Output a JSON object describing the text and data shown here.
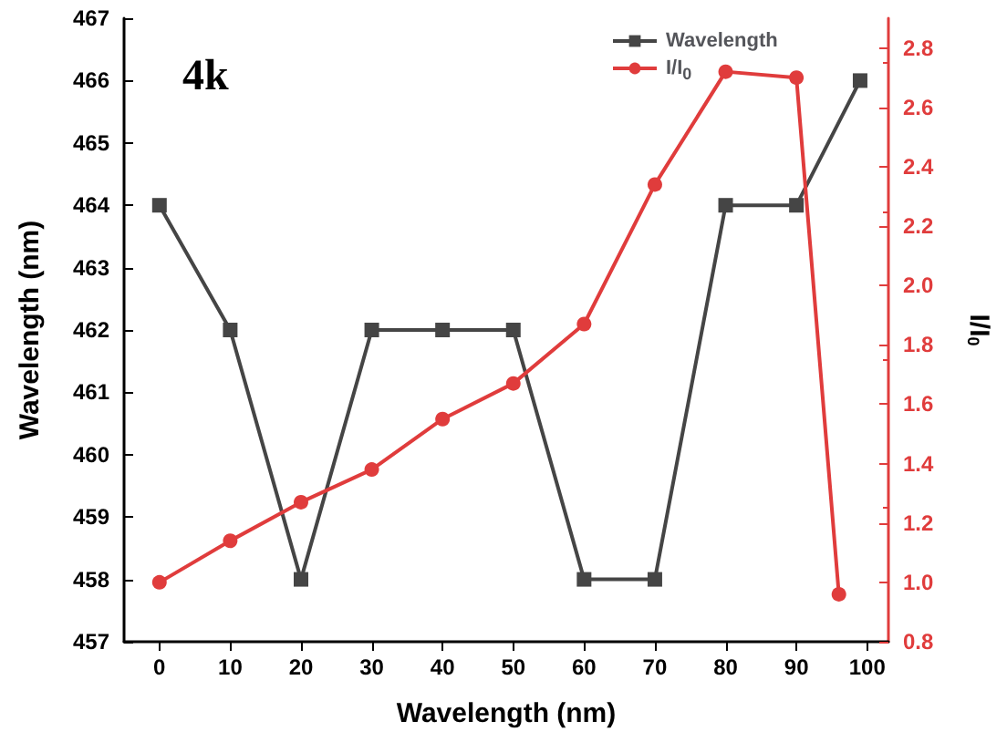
{
  "chart_data": {
    "type": "line",
    "xlabel": "Wavelength (nm)",
    "ylabel": "Wavelength (nm)",
    "y2label": "I/I$_{0}$",
    "annotations": [
      "4k"
    ],
    "xlim": [
      -5,
      103
    ],
    "xticks": [
      0,
      10,
      20,
      30,
      40,
      50,
      60,
      70,
      80,
      90,
      100
    ],
    "ylim": [
      457,
      467
    ],
    "yticks": [
      457,
      458,
      459,
      460,
      461,
      462,
      463,
      464,
      465,
      466,
      467
    ],
    "y2lim": [
      0.8,
      2.9
    ],
    "y2ticks": [
      0.8,
      {
        "value": 1.0,
        "label": "1.0"
      },
      1.2,
      1.4,
      1.6,
      1.8,
      {
        "value": 2.0,
        "label": "2.0"
      },
      2.2,
      2.4,
      2.6,
      2.8
    ],
    "legend": "top",
    "grid": false,
    "series": [
      {
        "name": "Wavelength",
        "color": "#454545",
        "marker": "square",
        "x": [
          0,
          10,
          20,
          30,
          40,
          50,
          60,
          70,
          80,
          90,
          99
        ],
        "values": [
          464,
          462,
          458,
          462,
          462,
          462,
          458,
          458,
          464,
          464,
          466
        ]
      },
      {
        "name": "I/I$_{0}$",
        "color": "#e03c3c",
        "marker": "circle",
        "axis": "y2",
        "x": [
          0,
          10,
          20,
          30,
          40,
          50,
          60,
          70,
          80,
          90,
          96
        ],
        "values": [
          1.0,
          1.14,
          1.27,
          1.38,
          1.55,
          1.67,
          1.87,
          2.34,
          2.72,
          2.7,
          0.96
        ]
      }
    ]
  }
}
